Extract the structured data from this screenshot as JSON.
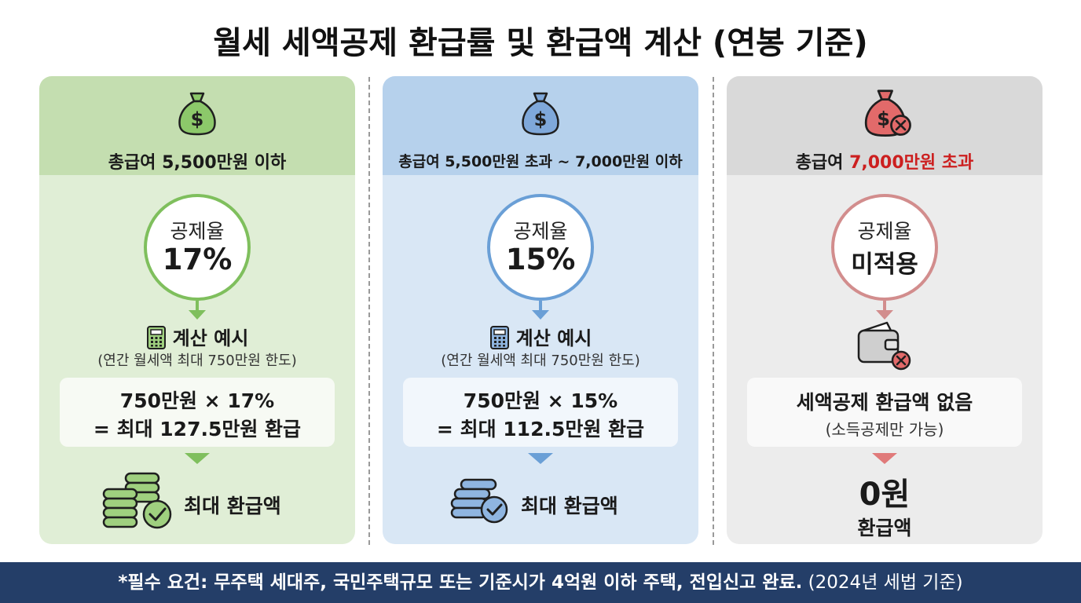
{
  "title": "월세 세액공제 환급률 및 환급액 계산 (연봉 기준)",
  "colors": {
    "green_accent": "#7fbf5d",
    "blue_accent": "#6a9fd6",
    "gray_accent": "#d28d8d",
    "red_text": "#cc1f1f",
    "footer_bg": "#243e68"
  },
  "cards": [
    {
      "range": "총급여 5,500만원 이하",
      "rate_label": "공제율",
      "rate_value": "17%",
      "example_title": "계산 예시",
      "example_sub": "(연간 월세액 최대 750만원 한도)",
      "calc_line1": "750만원 × 17%",
      "calc_line2": "= 최대 127.5만원 환급",
      "result_label": "최대 환급액",
      "icon": "money-bag-icon"
    },
    {
      "range": "총급여 5,500만원 초과 ~ 7,000만원 이하",
      "rate_label": "공제율",
      "rate_value": "15%",
      "example_title": "계산 예시",
      "example_sub": "(연간 월세액 최대 750만원 한도)",
      "calc_line1": "750만원 × 15%",
      "calc_line2": "= 최대 112.5만원 환급",
      "result_label": "최대 환급액",
      "icon": "money-bag-icon"
    },
    {
      "range_prefix": "총급여 ",
      "range_highlight": "7,000만원 초과",
      "rate_label": "공제율",
      "rate_value": "미적용",
      "calc_line1": "세액공제 환급액 없음",
      "calc_line2": "(소득공제만 가능)",
      "result_value": "0원",
      "result_label": "환급액",
      "icon": "money-bag-x-icon"
    }
  ],
  "footer": {
    "bold_text": "*필수 요건: 무주택 세대주, 국민주택규모 또는 기준시가 4억원 이하 주택, 전입신고 완료.",
    "normal_text": " (2024년 세법 기준)"
  }
}
